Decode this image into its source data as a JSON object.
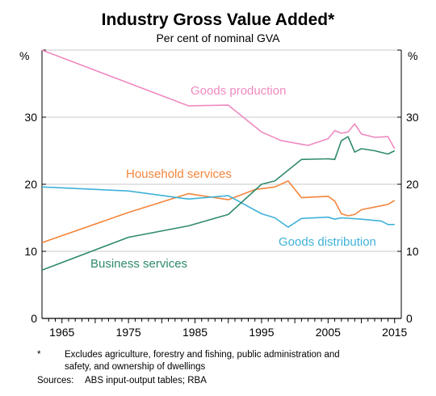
{
  "chart_data": {
    "type": "line",
    "title": "Industry Gross Value Added*",
    "subtitle": "Per cent of nominal GVA",
    "y_unit_left": "%",
    "y_unit_right": "%",
    "xlim": [
      1962,
      2016
    ],
    "ylim": [
      0,
      40
    ],
    "x_ticks": [
      1965,
      1975,
      1985,
      1995,
      2005,
      2015
    ],
    "y_ticks": [
      0,
      10,
      20,
      30
    ],
    "grid": true,
    "series": [
      {
        "name": "Goods production",
        "color": "#f08ac0",
        "points": [
          [
            1962,
            40
          ],
          [
            1984,
            31.7
          ],
          [
            1990,
            31.8
          ],
          [
            1995,
            27.8
          ],
          [
            1998,
            26.5
          ],
          [
            2002,
            25.8
          ],
          [
            2005,
            26.8
          ],
          [
            2006,
            28
          ],
          [
            2007,
            27.6
          ],
          [
            2008,
            27.8
          ],
          [
            2009,
            29
          ],
          [
            2010,
            27.5
          ],
          [
            2012,
            27
          ],
          [
            2014,
            27.1
          ],
          [
            2015,
            25.3
          ]
        ]
      },
      {
        "name": "Household services",
        "color": "#f4853c",
        "points": [
          [
            1962,
            11.3
          ],
          [
            1975,
            15.8
          ],
          [
            1984,
            18.6
          ],
          [
            1990,
            17.7
          ],
          [
            1994,
            19.2
          ],
          [
            1997,
            19.6
          ],
          [
            1999,
            20.5
          ],
          [
            2001,
            18
          ],
          [
            2005,
            18.2
          ],
          [
            2006,
            17.5
          ],
          [
            2007,
            15.6
          ],
          [
            2008,
            15.3
          ],
          [
            2009,
            15.5
          ],
          [
            2010,
            16.2
          ],
          [
            2012,
            16.6
          ],
          [
            2014,
            17
          ],
          [
            2015,
            17.6
          ]
        ]
      },
      {
        "name": "Goods distribution",
        "color": "#3fb2d8",
        "points": [
          [
            1962,
            19.6
          ],
          [
            1975,
            19
          ],
          [
            1984,
            17.8
          ],
          [
            1990,
            18.3
          ],
          [
            1995,
            15.6
          ],
          [
            1997,
            15
          ],
          [
            1999,
            13.6
          ],
          [
            2001,
            14.9
          ],
          [
            2005,
            15.1
          ],
          [
            2006,
            14.8
          ],
          [
            2007,
            15
          ],
          [
            2010,
            14.8
          ],
          [
            2013,
            14.5
          ],
          [
            2014,
            14
          ],
          [
            2015,
            14
          ]
        ]
      },
      {
        "name": "Business services",
        "color": "#2f8a6c",
        "points": [
          [
            1962,
            7.2
          ],
          [
            1975,
            12.1
          ],
          [
            1984,
            13.8
          ],
          [
            1990,
            15.5
          ],
          [
            1995,
            20
          ],
          [
            1997,
            20.5
          ],
          [
            2001,
            23.7
          ],
          [
            2005,
            23.8
          ],
          [
            2006,
            23.7
          ],
          [
            2007,
            26.5
          ],
          [
            2008,
            27.1
          ],
          [
            2009,
            24.8
          ],
          [
            2010,
            25.3
          ],
          [
            2012,
            25
          ],
          [
            2014,
            24.5
          ],
          [
            2015,
            25
          ]
        ]
      }
    ]
  },
  "footnote": {
    "marker": "*",
    "line1": "Excludes agriculture, forestry and fishing, public administration and",
    "line2": "safety, and ownership of dwellings",
    "sources_label": "Sources:",
    "sources_text": "ABS input-output tables; RBA"
  }
}
